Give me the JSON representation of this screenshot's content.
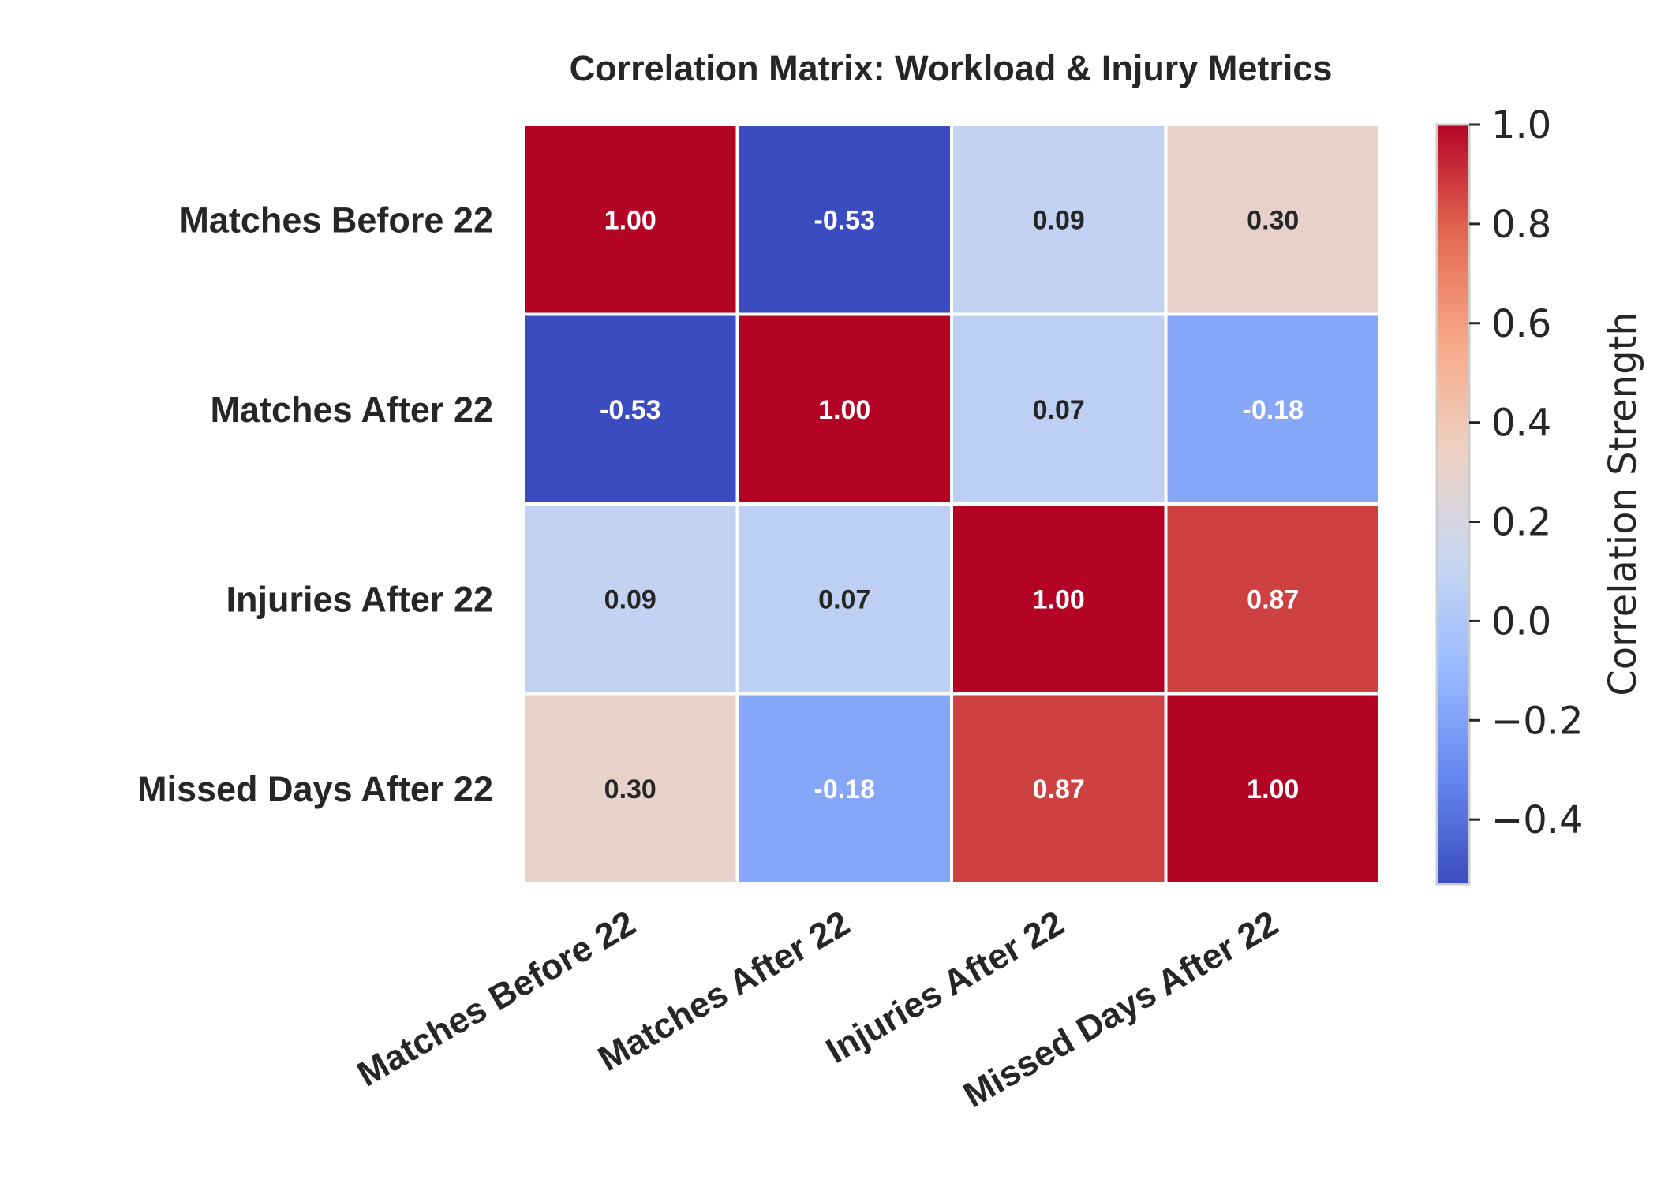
{
  "chart_data": {
    "type": "heatmap",
    "title": "Correlation Matrix: Workload & Injury Metrics",
    "rows": [
      "Matches Before 22",
      "Matches After 22",
      "Injuries After 22",
      "Missed Days After 22"
    ],
    "columns": [
      "Matches Before 22",
      "Matches After 22",
      "Injuries After 22",
      "Missed Days After 22"
    ],
    "values": [
      [
        1.0,
        -0.53,
        0.09,
        0.3
      ],
      [
        -0.53,
        1.0,
        0.07,
        -0.18
      ],
      [
        0.09,
        0.07,
        1.0,
        0.87
      ],
      [
        0.3,
        -0.18,
        0.87,
        1.0
      ]
    ],
    "value_labels": [
      [
        "1.00",
        "-0.53",
        "0.09",
        "0.30"
      ],
      [
        "-0.53",
        "1.00",
        "0.07",
        "-0.18"
      ],
      [
        "0.09",
        "0.07",
        "1.00",
        "0.87"
      ],
      [
        "0.30",
        "-0.18",
        "0.87",
        "1.00"
      ]
    ],
    "colormap": "coolwarm",
    "colorbar": {
      "label": "Correlation Strength",
      "range": [
        -0.53,
        1.0
      ],
      "ticks": [
        1.0,
        0.8,
        0.6,
        0.4,
        0.2,
        0.0,
        -0.2,
        -0.4
      ],
      "tick_labels": [
        "1.0",
        "0.8",
        "0.6",
        "0.4",
        "0.2",
        "0.0",
        "−0.2",
        "−0.4"
      ]
    },
    "colors": {
      "colormap_stops": [
        "#3b4cc0",
        "#6788ee",
        "#9abbff",
        "#c9d7f0",
        "#edd1c2",
        "#f7a889",
        "#e26952",
        "#b40426"
      ],
      "grid_line": "#ffffff",
      "text_dark": "#262626",
      "text_light": "#ffffff"
    },
    "legend": "colorbar right"
  }
}
